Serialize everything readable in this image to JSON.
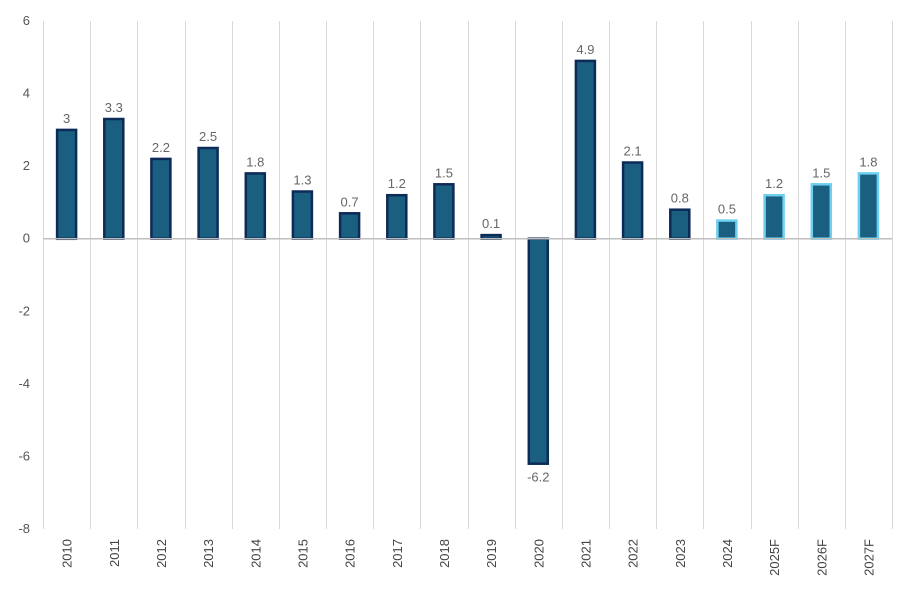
{
  "chart_data": {
    "type": "bar",
    "title": "",
    "xlabel": "",
    "ylabel": "",
    "ylim": [
      -8,
      6
    ],
    "yticks": [
      6,
      4,
      2,
      0,
      -2,
      -4,
      -6,
      -8
    ],
    "ytick_labels": [
      "6",
      "4",
      "2",
      "0",
      "-2",
      "-4",
      "-6",
      "-8"
    ],
    "grid": "vertical",
    "categories": [
      "2010",
      "2011",
      "2012",
      "2013",
      "2014",
      "2015",
      "2016",
      "2017",
      "2018",
      "2019",
      "2020",
      "2021",
      "2022",
      "2023",
      "2024",
      "2025F",
      "2026F",
      "2027F"
    ],
    "values": [
      3,
      3.3,
      2.2,
      2.5,
      1.8,
      1.3,
      0.7,
      1.2,
      1.5,
      0.1,
      -6.2,
      4.9,
      2.1,
      0.8,
      0.5,
      1.2,
      1.5,
      1.8
    ],
    "value_labels": [
      "3",
      "3.3",
      "2.2",
      "2.5",
      "1.8",
      "1.3",
      "0.7",
      "1.2",
      "1.5",
      "0.1",
      "-6.2",
      "4.9",
      "2.1",
      "0.8",
      "0.5",
      "1.2",
      "1.5",
      "1.8"
    ],
    "estimated": [
      false,
      false,
      false,
      false,
      false,
      false,
      false,
      false,
      false,
      false,
      false,
      false,
      false,
      false,
      true,
      true,
      true,
      true
    ],
    "colors": {
      "bar_fill": "#1a5f80",
      "bar_border": "#0d2b57",
      "estimate_border": "#6ecff0",
      "grid": "#d9d9d9",
      "zero_line": "#bfbfbf"
    }
  }
}
